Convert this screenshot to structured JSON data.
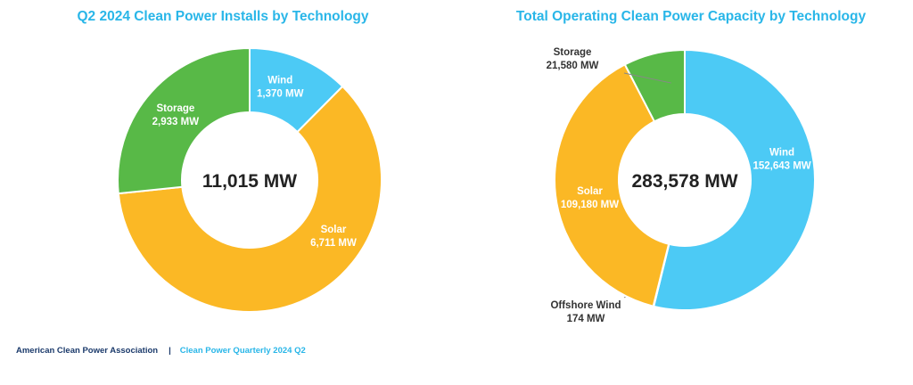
{
  "colors": {
    "title": "#29b6e8",
    "wind": "#4ccaf5",
    "solar": "#fbb825",
    "storage": "#58b947",
    "offshore": "#2b6cb0",
    "label_light": "#ffffff",
    "label_dark": "#333333",
    "footer_org": "#1b3a6b",
    "footer_report": "#29b6e8"
  },
  "chart_data": [
    {
      "type": "pie",
      "variant": "donut",
      "title": "Q2 2024 Clean Power Installs by Technology",
      "center_label": "11,015 MW",
      "slices": [
        {
          "name": "Wind",
          "value": 1370,
          "value_label": "1,370 MW",
          "color": "#4ccaf5"
        },
        {
          "name": "Solar",
          "value": 6711,
          "value_label": "6,711 MW",
          "color": "#fbb825"
        },
        {
          "name": "Storage",
          "value": 2933,
          "value_label": "2,933 MW",
          "color": "#58b947"
        }
      ]
    },
    {
      "type": "pie",
      "variant": "donut",
      "title": "Total Operating Clean Power Capacity by Technology",
      "center_label": "283,578 MW",
      "slices": [
        {
          "name": "Wind",
          "value": 152643,
          "value_label": "152,643 MW",
          "color": "#4ccaf5"
        },
        {
          "name": "Offshore Wind",
          "value": 174,
          "value_label": "174 MW",
          "color": "#2b6cb0"
        },
        {
          "name": "Solar",
          "value": 109180,
          "value_label": "109,180 MW",
          "color": "#fbb825"
        },
        {
          "name": "Storage",
          "value": 21580,
          "value_label": "21,580 MW",
          "color": "#58b947"
        }
      ]
    }
  ],
  "footer": {
    "organization": "American Clean Power Association",
    "separator": "|",
    "report": "Clean Power Quarterly 2024 Q2"
  }
}
